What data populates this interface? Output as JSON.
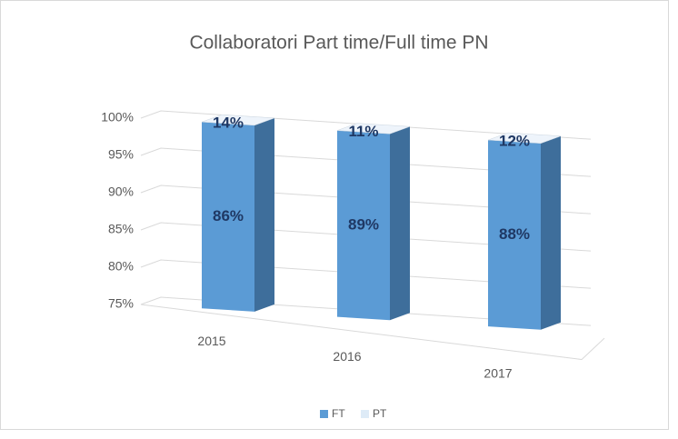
{
  "chart_data": {
    "type": "stacked_bar_3d",
    "title": "Collaboratori Part time/Full time PN",
    "categories": [
      "2015",
      "2016",
      "2017"
    ],
    "series": [
      {
        "name": "FT",
        "color": "#5b9bd5",
        "side_color": "#3e6e9b",
        "values": [
          86,
          89,
          88
        ],
        "value_labels": [
          "86%",
          "89%",
          "88%"
        ]
      },
      {
        "name": "PT",
        "color": "#deebf7",
        "side_color": "#9fa3a8",
        "values": [
          14,
          11,
          12
        ],
        "value_labels": [
          "14%",
          "11%",
          "12%"
        ]
      }
    ],
    "ylim": [
      75,
      100
    ],
    "yticks": [
      {
        "value": 75,
        "label": "75%"
      },
      {
        "value": 80,
        "label": "80%"
      },
      {
        "value": 85,
        "label": "85%"
      },
      {
        "value": 90,
        "label": "90%"
      },
      {
        "value": 95,
        "label": "95%"
      },
      {
        "value": 100,
        "label": "100%"
      }
    ],
    "grid": true,
    "legend": "bottom"
  }
}
